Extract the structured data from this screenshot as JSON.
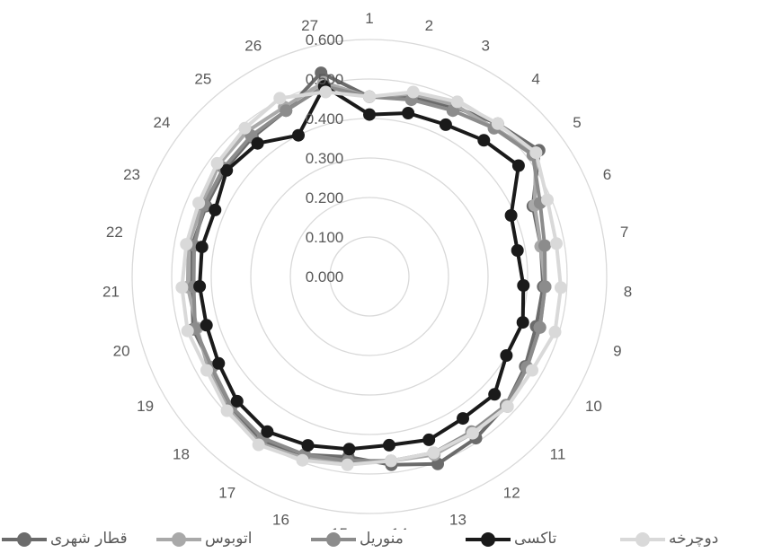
{
  "chart_data": {
    "type": "radar",
    "categories": [
      "1",
      "2",
      "3",
      "4",
      "5",
      "6",
      "7",
      "8",
      "9",
      "10",
      "11",
      "12",
      "13",
      "14",
      "15",
      "16",
      "17",
      "18",
      "19",
      "20",
      "21",
      "22",
      "23",
      "24",
      "25",
      "26",
      "27"
    ],
    "r_ticks": [
      "0.000",
      "0.100",
      "0.200",
      "0.300",
      "0.400",
      "0.500",
      "0.600"
    ],
    "rlim": [
      0,
      0.6
    ],
    "grid": true,
    "legend_position": "bottom",
    "series": [
      {
        "name": "قطار شهری",
        "color": "#6b6b6b",
        "values": [
          0.455,
          0.465,
          0.48,
          0.505,
          0.535,
          0.45,
          0.44,
          0.44,
          0.44,
          0.455,
          0.475,
          0.49,
          0.505,
          0.48,
          0.46,
          0.48,
          0.5,
          0.485,
          0.46,
          0.465,
          0.45,
          0.455,
          0.45,
          0.455,
          0.46,
          0.47,
          0.53
        ]
      },
      {
        "name": "اتوبوس",
        "color": "#a9a9a9",
        "values": [
          0.455,
          0.475,
          0.485,
          0.49,
          0.525,
          0.455,
          0.44,
          0.445,
          0.45,
          0.46,
          0.48,
          0.475,
          0.48,
          0.47,
          0.47,
          0.49,
          0.505,
          0.49,
          0.47,
          0.455,
          0.46,
          0.465,
          0.46,
          0.475,
          0.48,
          0.48,
          0.505
        ]
      },
      {
        "name": "منوریل",
        "color": "#8c8c8c",
        "values": [
          0.455,
          0.46,
          0.47,
          0.49,
          0.515,
          0.47,
          0.45,
          0.445,
          0.45,
          0.46,
          0.475,
          0.47,
          0.475,
          0.47,
          0.47,
          0.48,
          0.49,
          0.48,
          0.46,
          0.46,
          0.445,
          0.45,
          0.455,
          0.46,
          0.465,
          0.47,
          0.495
        ]
      },
      {
        "name": "تاکسی",
        "color": "#1a1a1a",
        "values": [
          0.41,
          0.425,
          0.43,
          0.45,
          0.47,
          0.39,
          0.38,
          0.39,
          0.405,
          0.4,
          0.435,
          0.43,
          0.44,
          0.43,
          0.44,
          0.455,
          0.47,
          0.46,
          0.44,
          0.43,
          0.43,
          0.43,
          0.425,
          0.45,
          0.44,
          0.4,
          0.495
        ]
      },
      {
        "name": "دوچرخه",
        "color": "#d9d9d9",
        "values": [
          0.455,
          0.48,
          0.495,
          0.505,
          0.525,
          0.49,
          0.48,
          0.485,
          0.49,
          0.475,
          0.48,
          0.475,
          0.475,
          0.47,
          0.48,
          0.495,
          0.51,
          0.495,
          0.475,
          0.48,
          0.475,
          0.47,
          0.47,
          0.48,
          0.49,
          0.505,
          0.48
        ]
      }
    ]
  }
}
